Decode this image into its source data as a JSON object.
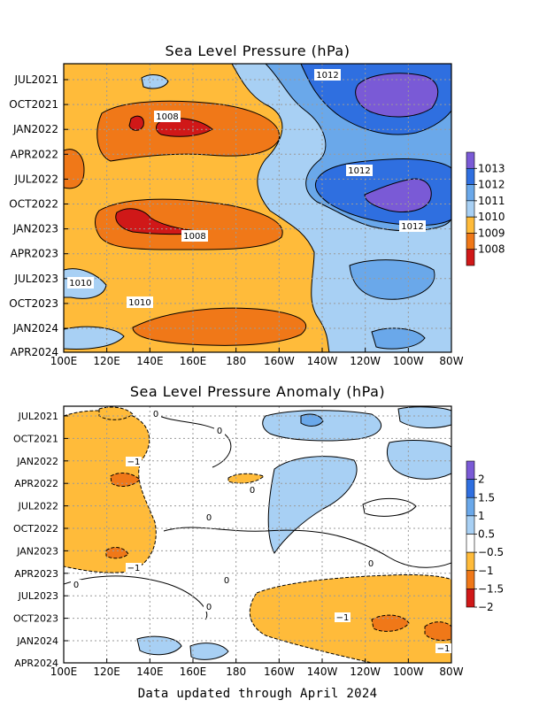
{
  "chart_data": [
    {
      "type": "heatmap",
      "title": "Sea Level Pressure (hPa)",
      "x_ticks": [
        "100E",
        "120E",
        "140E",
        "160E",
        "180",
        "160W",
        "140W",
        "120W",
        "100W",
        "80W"
      ],
      "y_ticks": [
        "JUL2021",
        "OCT2021",
        "JAN2022",
        "APR2022",
        "JUL2022",
        "OCT2022",
        "JAN2023",
        "APR2023",
        "JUL2023",
        "OCT2023",
        "JAN2024",
        "APR2024"
      ],
      "grid": true,
      "colorbar": {
        "labels": [
          "1013",
          "1012",
          "1011",
          "1010",
          "1009",
          "1008"
        ],
        "colors": [
          "#7a5ad6",
          "#2f6fe0",
          "#6aa8ea",
          "#a8d0f4",
          "#ffbb3a",
          "#f07818",
          "#d01818"
        ]
      },
      "contour_labels": [
        "1012",
        "1008",
        "1012",
        "1012",
        "1008",
        "1010",
        "1010"
      ],
      "features": [
        {
          "region": "western-pacific",
          "x_range": [
            "100E",
            "150W"
          ],
          "level": 1009
        },
        {
          "region": "jan2022-minimum",
          "x_range": [
            "125E",
            "165E"
          ],
          "level": 1008
        },
        {
          "region": "jan2023-minimum",
          "x_range": [
            "125E",
            "165E"
          ],
          "level": 1008
        },
        {
          "region": "eastern-pacific",
          "x_range": [
            "140W",
            "80W"
          ],
          "level": 1012
        },
        {
          "region": "high-center-2021",
          "x_range": [
            "120W",
            "90W"
          ],
          "level": 1013
        },
        {
          "region": "high-center-2022",
          "x_range": [
            "115W",
            "90W"
          ],
          "level": 1013
        }
      ]
    },
    {
      "type": "heatmap",
      "title": "Sea Level Pressure Anomaly (hPa)",
      "x_ticks": [
        "100E",
        "120E",
        "140E",
        "160E",
        "180",
        "160W",
        "140W",
        "120W",
        "100W",
        "80W"
      ],
      "y_ticks": [
        "JUL2021",
        "OCT2021",
        "JAN2022",
        "APR2022",
        "JUL2022",
        "OCT2022",
        "JAN2023",
        "APR2023",
        "JUL2023",
        "OCT2023",
        "JAN2024",
        "APR2024"
      ],
      "grid": true,
      "colorbar": {
        "labels": [
          "2",
          "1.5",
          "1",
          "0.5",
          "−0.5",
          "−1",
          "−1.5",
          "−2"
        ],
        "colors": [
          "#7a5ad6",
          "#2f6fe0",
          "#6aa8ea",
          "#a8d0f4",
          "#ffffff",
          "#ffbb3a",
          "#f07818",
          "#d01818"
        ]
      },
      "contour_labels": [
        "0",
        "0",
        "−1",
        "0",
        "0",
        "0",
        "−1",
        "0",
        "0",
        "0",
        "−1",
        "−1"
      ],
      "features": [
        {
          "region": "western-pacific-negative",
          "x_range": [
            "100E",
            "150E"
          ],
          "period": [
            "JUL2021",
            "APR2023"
          ],
          "anomaly": -1
        },
        {
          "region": "eastern-pacific-negative",
          "x_range": [
            "160W",
            "80W"
          ],
          "period": [
            "JUL2023",
            "APR2024"
          ],
          "anomaly": -1
        },
        {
          "region": "central-east-positive",
          "x_range": [
            "150W",
            "100W"
          ],
          "period": [
            "JUL2021",
            "JAN2023"
          ],
          "anomaly": 0.5
        }
      ]
    }
  ],
  "footer": "Data updated through April 2024"
}
